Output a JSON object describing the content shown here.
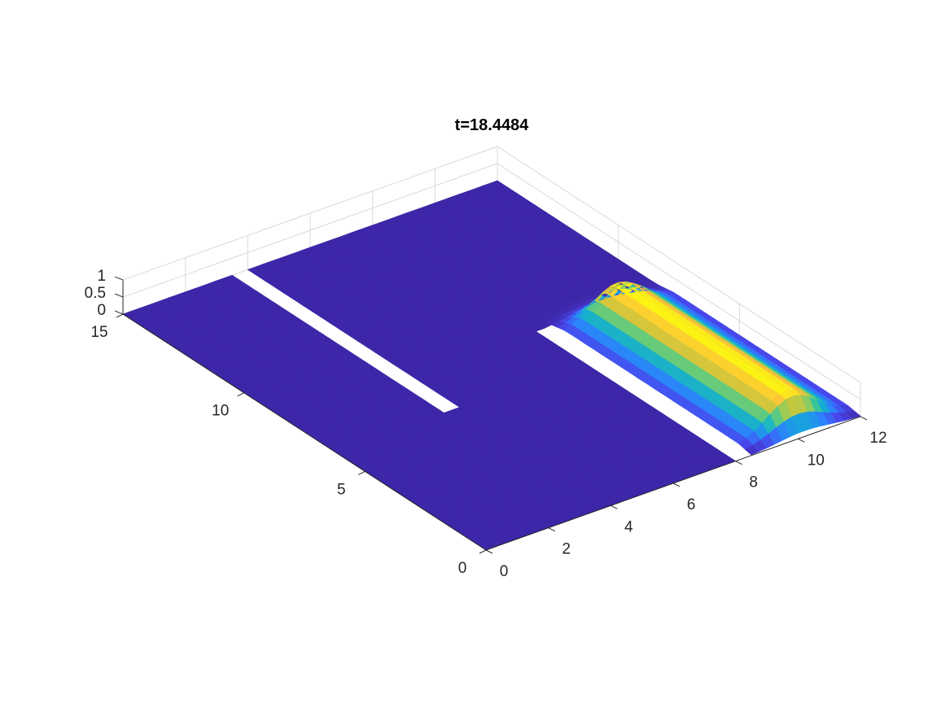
{
  "chart_data": {
    "type": "surface3d",
    "title": "t=18.4484",
    "xlabel": "",
    "ylabel": "",
    "zlabel": "",
    "xlim": [
      0,
      12
    ],
    "ylim": [
      0,
      15
    ],
    "zlim": [
      0,
      1
    ],
    "x_ticks": [
      "0",
      "2",
      "4",
      "6",
      "8",
      "10",
      "12"
    ],
    "y_ticks": [
      "0",
      "5",
      "10",
      "15"
    ],
    "z_ticks": [
      "0",
      "0.5",
      "1"
    ],
    "grid": true,
    "colormap": "parula",
    "background_color": "#3d26a8",
    "walls": [
      {
        "x_range": [
          8.0,
          8.5
        ],
        "y_range": [
          0.0,
          8.3
        ]
      },
      {
        "x_range": [
          3.6,
          4.1
        ],
        "y_range": [
          6.3,
          15.0
        ]
      }
    ],
    "wave": {
      "x_range": [
        8.5,
        12
      ],
      "y_range": [
        0,
        8.8
      ],
      "peak_height": 1.0,
      "description_values": {
        "crest_x": 10.2,
        "crest_y_from": 0.6,
        "crest_y_to": 7.6
      }
    }
  }
}
